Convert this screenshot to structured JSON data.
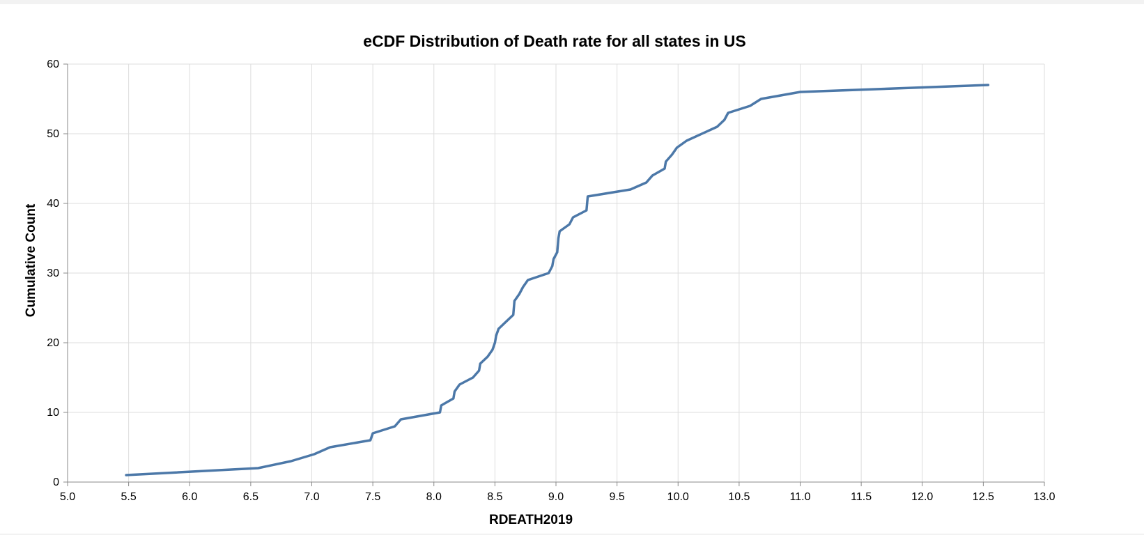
{
  "chart_data": {
    "type": "line",
    "title": "eCDF Distribution of Death rate for all states in US",
    "xlabel": "RDEATH2019",
    "ylabel": "Cumulative Count",
    "xlim": [
      5.0,
      13.0
    ],
    "ylim": [
      0,
      60
    ],
    "xticks": [
      "5.0",
      "5.5",
      "6.0",
      "6.5",
      "7.0",
      "7.5",
      "8.0",
      "8.5",
      "9.0",
      "9.5",
      "10.0",
      "10.5",
      "11.0",
      "11.5",
      "12.0",
      "12.5",
      "13.0"
    ],
    "yticks": [
      "0",
      "10",
      "20",
      "30",
      "40",
      "50",
      "60"
    ],
    "grid": true,
    "line_color": "#4c78a8",
    "series": [
      {
        "x": [
          5.48,
          6.56,
          6.83,
          7.02,
          7.15,
          7.48,
          7.5,
          7.68,
          7.73,
          8.05,
          8.06,
          8.16,
          8.17,
          8.21,
          8.32,
          8.37,
          8.38,
          8.44,
          8.48,
          8.5,
          8.51,
          8.53,
          8.59,
          8.65,
          8.66,
          8.7,
          8.73,
          8.77,
          8.94,
          8.97,
          8.98,
          9.01,
          9.02,
          9.03,
          9.11,
          9.14,
          9.25,
          9.26,
          9.61,
          9.74,
          9.79,
          9.89,
          9.9,
          9.95,
          9.99,
          10.07,
          10.32,
          10.38,
          10.41,
          10.59,
          10.68,
          11.0,
          12.54
        ],
        "y": [
          1,
          2,
          3,
          4,
          5,
          6,
          7,
          8,
          9,
          10,
          11,
          12,
          13,
          14,
          15,
          16,
          17,
          18,
          19,
          20,
          21,
          22,
          23,
          24,
          26,
          27,
          28,
          29,
          30,
          31,
          32,
          33,
          35,
          36,
          37,
          38,
          39,
          41,
          42,
          43,
          44,
          45,
          46,
          47,
          48,
          49,
          51,
          52,
          53,
          54,
          55,
          56,
          57
        ]
      }
    ]
  }
}
